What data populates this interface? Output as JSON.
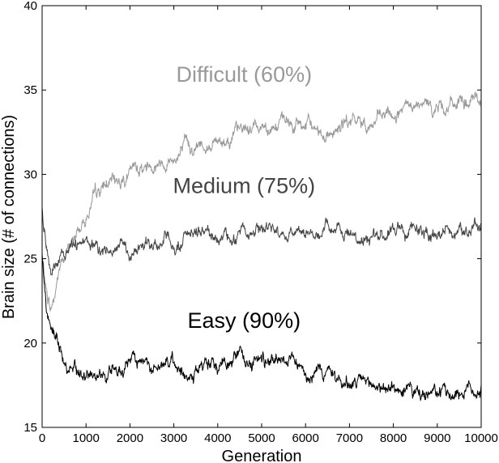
{
  "chart_data": {
    "type": "line",
    "title": "",
    "xlabel": "Generation",
    "ylabel": "Brain size (# of connections)",
    "xlim": [
      0,
      10000
    ],
    "ylim": [
      15,
      40
    ],
    "xticks": [
      0,
      1000,
      2000,
      3000,
      4000,
      5000,
      6000,
      7000,
      8000,
      9000,
      10000
    ],
    "yticks": [
      15,
      20,
      25,
      30,
      35,
      40
    ],
    "grid": false,
    "legend": "none",
    "series": [
      {
        "name": "Difficult (60%)",
        "color": "#999999",
        "label_at": [
          4600,
          35.5
        ],
        "x": [
          0,
          100,
          200,
          300,
          400,
          500,
          700,
          900,
          1000,
          1200,
          1400,
          1600,
          1800,
          2000,
          2300,
          2600,
          3000,
          3300,
          3600,
          4000,
          4500,
          5000,
          5500,
          6000,
          6500,
          7000,
          7500,
          8000,
          8500,
          9000,
          9500,
          10000
        ],
        "y": [
          25.0,
          23.0,
          22.0,
          23.0,
          24.5,
          25.0,
          26.0,
          27.0,
          27.5,
          28.5,
          29.2,
          29.5,
          29.8,
          30.0,
          30.5,
          30.8,
          31.0,
          31.5,
          31.8,
          32.0,
          32.5,
          33.0,
          33.0,
          32.8,
          32.5,
          33.0,
          33.0,
          33.5,
          33.8,
          34.0,
          34.2,
          34.3
        ]
      },
      {
        "name": "Medium (75%)",
        "color": "#444444",
        "label_at": [
          4600,
          28.9
        ],
        "x": [
          0,
          100,
          200,
          300,
          400,
          500,
          700,
          900,
          1000,
          1300,
          1600,
          2000,
          2500,
          3000,
          3500,
          4000,
          4500,
          5000,
          5500,
          6000,
          6500,
          7000,
          7500,
          8000,
          8500,
          9000,
          9500,
          10000
        ],
        "y": [
          28.0,
          25.5,
          24.3,
          24.5,
          24.8,
          25.2,
          25.5,
          25.5,
          25.7,
          25.5,
          25.6,
          25.8,
          26.0,
          26.0,
          26.2,
          26.5,
          26.7,
          27.0,
          26.5,
          26.5,
          26.8,
          26.5,
          26.3,
          26.6,
          27.0,
          26.5,
          26.6,
          26.7
        ]
      },
      {
        "name": "Easy (90%)",
        "color": "#000000",
        "label_at": [
          4600,
          20.9
        ],
        "x": [
          0,
          100,
          200,
          300,
          400,
          500,
          700,
          900,
          1000,
          1500,
          2000,
          2500,
          3000,
          3500,
          4000,
          4500,
          5000,
          5500,
          6000,
          6500,
          7000,
          7500,
          8000,
          8500,
          9000,
          9500,
          10000
        ],
        "y": [
          25.5,
          22.0,
          21.0,
          20.5,
          20.0,
          19.2,
          18.5,
          18.2,
          18.0,
          18.5,
          18.7,
          18.6,
          18.6,
          18.5,
          18.7,
          19.2,
          19.0,
          19.3,
          18.5,
          18.2,
          17.5,
          17.5,
          17.3,
          17.0,
          16.8,
          17.2,
          17.3
        ]
      }
    ]
  }
}
